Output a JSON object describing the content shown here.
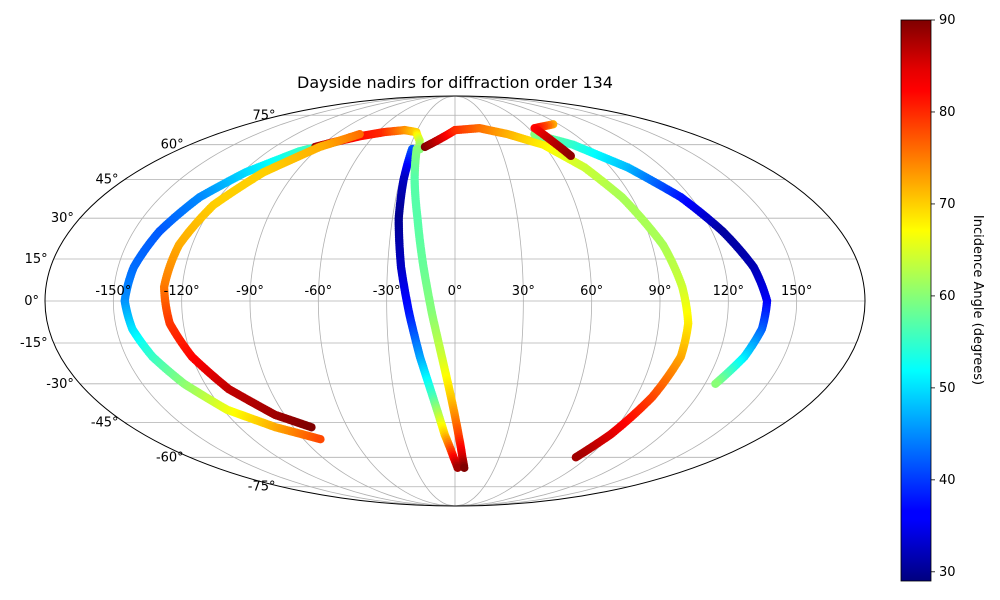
{
  "chart_data": {
    "type": "scatter",
    "title": "Dayside nadirs for diffraction order 134",
    "projection": "mollweide",
    "grid": true,
    "longitude_ticks": [
      "-150°",
      "-120°",
      "-90°",
      "-60°",
      "-30°",
      "0°",
      "30°",
      "60°",
      "90°",
      "120°",
      "150°"
    ],
    "latitude_ticks": [
      "75°",
      "60°",
      "45°",
      "30°",
      "15°",
      "0°",
      "-15°",
      "-30°",
      "-45°",
      "-60°",
      "-75°"
    ],
    "colorbar": {
      "label": "Incidence Angle (degrees)",
      "colormap": "jet",
      "range": [
        29,
        90
      ],
      "ticks": [
        "90",
        "80",
        "70",
        "60",
        "50",
        "40",
        "30"
      ]
    },
    "series": [
      {
        "points": [
          {
            "lon": -80,
            "lat": 62,
            "value": 58
          },
          {
            "lon": -100,
            "lat": 57,
            "value": 55
          },
          {
            "lon": -118,
            "lat": 48,
            "value": 50
          },
          {
            "lon": -130,
            "lat": 38,
            "value": 45
          },
          {
            "lon": -138,
            "lat": 25,
            "value": 42
          },
          {
            "lon": -143,
            "lat": 12,
            "value": 43
          },
          {
            "lon": -145,
            "lat": 0,
            "value": 45
          },
          {
            "lon": -143,
            "lat": -10,
            "value": 50
          },
          {
            "lon": -138,
            "lat": -20,
            "value": 55
          },
          {
            "lon": -130,
            "lat": -30,
            "value": 60
          },
          {
            "lon": -118,
            "lat": -40,
            "value": 66
          },
          {
            "lon": -100,
            "lat": -47,
            "value": 72
          },
          {
            "lon": -80,
            "lat": -52,
            "value": 78
          }
        ]
      },
      {
        "points": [
          {
            "lon": -93,
            "lat": 59,
            "value": 88
          },
          {
            "lon": -85,
            "lat": 61,
            "value": 85
          },
          {
            "lon": -70,
            "lat": 64,
            "value": 82
          },
          {
            "lon": -55,
            "lat": 66,
            "value": 80
          },
          {
            "lon": -40,
            "lat": 67,
            "value": 74
          },
          {
            "lon": -30,
            "lat": 66,
            "value": 70
          },
          {
            "lon": -25,
            "lat": 62,
            "value": 64
          },
          {
            "lon": -23,
            "lat": 58,
            "value": 60
          }
        ]
      },
      {
        "points": [
          {
            "lon": -72,
            "lat": 65,
            "value": 76
          },
          {
            "lon": -90,
            "lat": 59,
            "value": 72
          },
          {
            "lon": -108,
            "lat": 48,
            "value": 70
          },
          {
            "lon": -120,
            "lat": 35,
            "value": 70
          },
          {
            "lon": -126,
            "lat": 20,
            "value": 72
          },
          {
            "lon": -128,
            "lat": 5,
            "value": 75
          },
          {
            "lon": -126,
            "lat": -8,
            "value": 79
          },
          {
            "lon": -120,
            "lat": -20,
            "value": 82
          },
          {
            "lon": -110,
            "lat": -32,
            "value": 86
          },
          {
            "lon": -95,
            "lat": -42,
            "value": 88
          },
          {
            "lon": -80,
            "lat": -47,
            "value": 90
          }
        ]
      },
      {
        "points": [
          {
            "lon": -28,
            "lat": 58,
            "value": 42
          },
          {
            "lon": -28,
            "lat": 45,
            "value": 33
          },
          {
            "lon": -27,
            "lat": 30,
            "value": 30
          },
          {
            "lon": -24,
            "lat": 12,
            "value": 33
          },
          {
            "lon": -20,
            "lat": -5,
            "value": 38
          },
          {
            "lon": -16,
            "lat": -20,
            "value": 46
          },
          {
            "lon": -11,
            "lat": -35,
            "value": 56
          },
          {
            "lon": -6,
            "lat": -50,
            "value": 70
          },
          {
            "lon": -1,
            "lat": -60,
            "value": 82
          },
          {
            "lon": 2,
            "lat": -65,
            "value": 88
          }
        ]
      },
      {
        "points": [
          {
            "lon": -25,
            "lat": 58,
            "value": 60
          },
          {
            "lon": -22,
            "lat": 45,
            "value": 57
          },
          {
            "lon": -18,
            "lat": 30,
            "value": 57
          },
          {
            "lon": -14,
            "lat": 12,
            "value": 58
          },
          {
            "lon": -10,
            "lat": -5,
            "value": 60
          },
          {
            "lon": -6,
            "lat": -20,
            "value": 64
          },
          {
            "lon": -2,
            "lat": -35,
            "value": 70
          },
          {
            "lon": 2,
            "lat": -50,
            "value": 78
          },
          {
            "lon": 5,
            "lat": -60,
            "value": 85
          },
          {
            "lon": 7,
            "lat": -65,
            "value": 90
          }
        ]
      },
      {
        "points": [
          {
            "lon": -20,
            "lat": 59,
            "value": 90
          },
          {
            "lon": -10,
            "lat": 63,
            "value": 85
          },
          {
            "lon": 0,
            "lat": 67,
            "value": 80
          },
          {
            "lon": 20,
            "lat": 68,
            "value": 76
          },
          {
            "lon": 40,
            "lat": 65,
            "value": 72
          },
          {
            "lon": 60,
            "lat": 60,
            "value": 68
          },
          {
            "lon": 75,
            "lat": 50,
            "value": 64
          },
          {
            "lon": 85,
            "lat": 38,
            "value": 62
          },
          {
            "lon": 95,
            "lat": 20,
            "value": 62
          },
          {
            "lon": 100,
            "lat": 5,
            "value": 64
          },
          {
            "lon": 103,
            "lat": -8,
            "value": 68
          },
          {
            "lon": 103,
            "lat": -20,
            "value": 72
          },
          {
            "lon": 98,
            "lat": -35,
            "value": 78
          },
          {
            "lon": 90,
            "lat": -50,
            "value": 84
          },
          {
            "lon": 82,
            "lat": -60,
            "value": 88
          }
        ]
      },
      {
        "points": [
          {
            "lon": 60,
            "lat": 65,
            "value": 60
          },
          {
            "lon": 80,
            "lat": 60,
            "value": 55
          },
          {
            "lon": 100,
            "lat": 50,
            "value": 48
          },
          {
            "lon": 115,
            "lat": 38,
            "value": 38
          },
          {
            "lon": 125,
            "lat": 25,
            "value": 31
          },
          {
            "lon": 133,
            "lat": 12,
            "value": 32
          },
          {
            "lon": 137,
            "lat": 0,
            "value": 36
          },
          {
            "lon": 136,
            "lat": -10,
            "value": 42
          },
          {
            "lon": 132,
            "lat": -20,
            "value": 50
          },
          {
            "lon": 125,
            "lat": -30,
            "value": 60
          }
        ]
      },
      {
        "points": [
          {
            "lon": 85,
            "lat": 70,
            "value": 72
          },
          {
            "lon": 75,
            "lat": 69,
            "value": 78
          },
          {
            "lon": 65,
            "lat": 68,
            "value": 82
          },
          {
            "lon": 68,
            "lat": 62,
            "value": 86
          },
          {
            "lon": 72,
            "lat": 55,
            "value": 89
          }
        ]
      }
    ]
  }
}
